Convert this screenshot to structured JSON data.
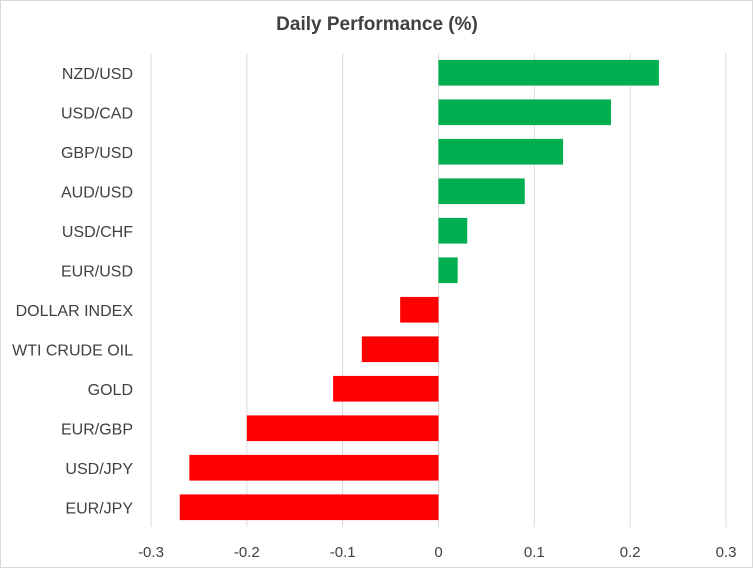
{
  "chart_data": {
    "type": "bar",
    "orientation": "horizontal",
    "title": "Daily Performance (%)",
    "xlabel": "",
    "ylabel": "",
    "categories": [
      "NZD/USD",
      "USD/CAD",
      "GBP/USD",
      "AUD/USD",
      "USD/CHF",
      "EUR/USD",
      "DOLLAR INDEX",
      "WTI CRUDE OIL",
      "GOLD",
      "EUR/GBP",
      "USD/JPY",
      "EUR/JPY"
    ],
    "values": [
      0.23,
      0.18,
      0.13,
      0.09,
      0.03,
      0.02,
      -0.04,
      -0.08,
      -0.11,
      -0.2,
      -0.26,
      -0.27
    ],
    "xlim": [
      -0.3,
      0.3
    ],
    "ticks": [
      "-0.3",
      "-0.2",
      "-0.1",
      "0",
      "0.1",
      "0.2",
      "0.3"
    ],
    "tick_values": [
      -0.3,
      -0.2,
      -0.1,
      0,
      0.1,
      0.2,
      0.3
    ],
    "grid": true,
    "legend": "none",
    "colors": {
      "positive": "#00b050",
      "negative": "#ff0000",
      "gridline": "#d9d9d9",
      "text": "#404040"
    }
  }
}
